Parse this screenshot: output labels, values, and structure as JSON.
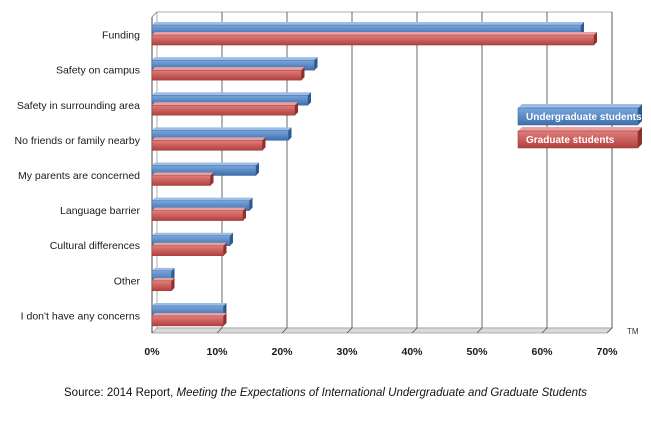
{
  "chart_data": {
    "type": "bar",
    "orientation": "horizontal",
    "categories": [
      "Funding",
      "Safety on campus",
      "Safety in surrounding area",
      "No friends or family nearby",
      "My parents are concerned",
      "Language barrier",
      "Cultural differences",
      "Other",
      "I don't have any concerns"
    ],
    "series": [
      {
        "name": "Undergraduate students",
        "color": "#4f85c6",
        "values": [
          66,
          25,
          24,
          21,
          16,
          15,
          12,
          3,
          11
        ]
      },
      {
        "name": "Graduate students",
        "color": "#c9514f",
        "values": [
          68,
          23,
          22,
          17,
          9,
          14,
          11,
          3,
          11
        ]
      }
    ],
    "x_ticks": [
      "0%",
      "10%",
      "20%",
      "30%",
      "40%",
      "50%",
      "60%",
      "70%"
    ],
    "xlim": [
      0,
      70
    ],
    "grid": true,
    "legend_position": "right",
    "trademark": "TM"
  },
  "source": {
    "prefix": "Source: 2014 Report,",
    "title": "Meeting the Expectations of International Undergraduate and Graduate Students"
  }
}
